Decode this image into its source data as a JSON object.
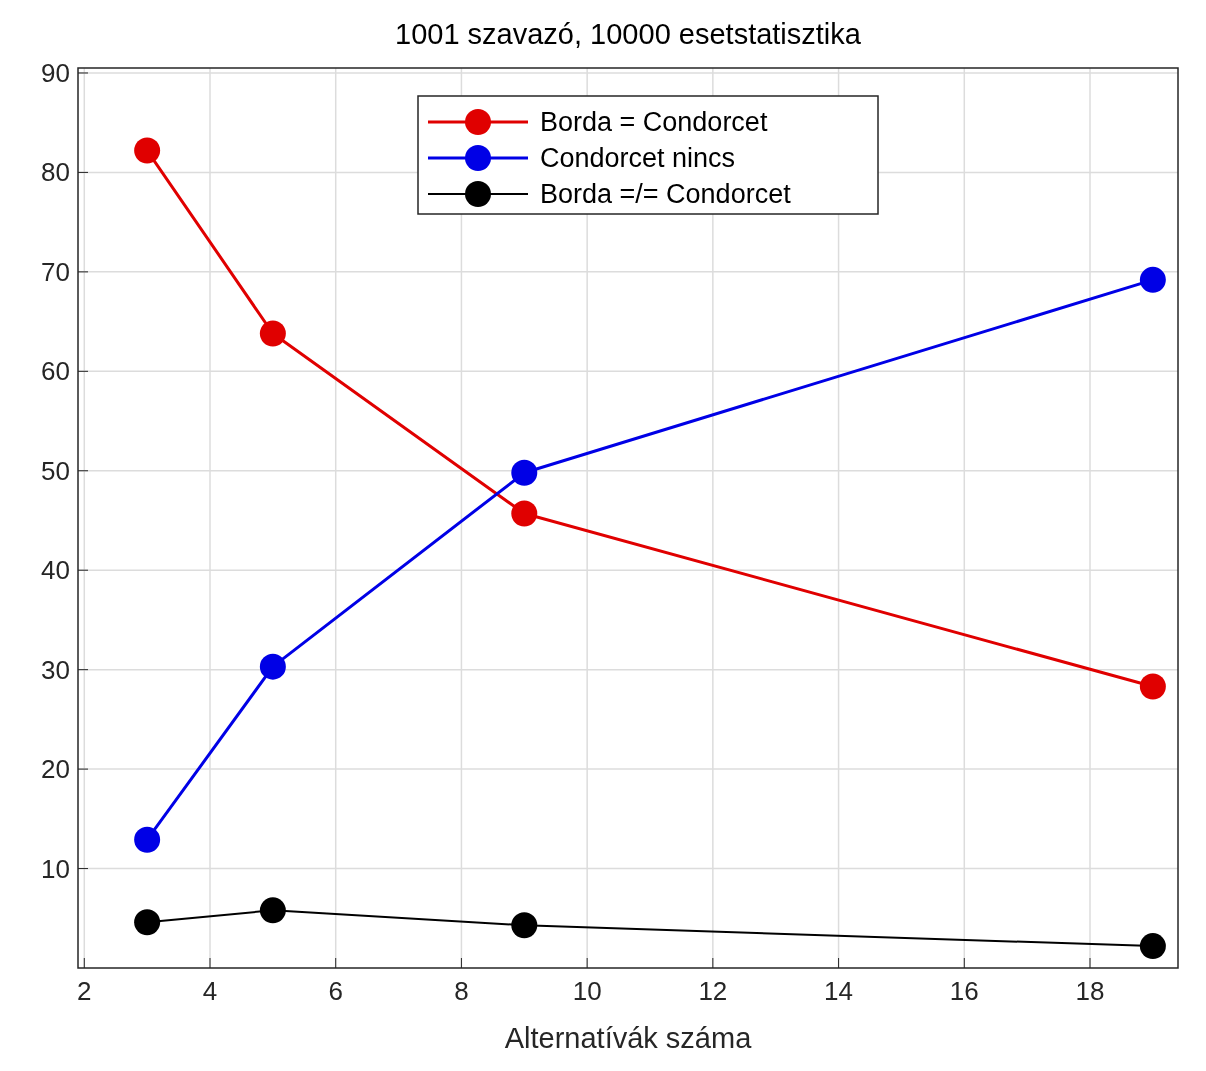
{
  "chart_data": {
    "type": "line",
    "title": "1001 szavazó, 10000 esetstatisztika",
    "xlabel": "Alternatívák száma",
    "x": [
      3,
      5,
      9,
      19
    ],
    "series": [
      {
        "name": "Borda = Condorcet",
        "color": "#e00000",
        "values": [
          82.2,
          63.8,
          45.7,
          28.3
        ]
      },
      {
        "name": "Condorcet nincs",
        "color": "#0000e6",
        "values": [
          12.9,
          30.3,
          49.8,
          69.2
        ]
      },
      {
        "name": "Borda =/= Condorcet",
        "color": "#000000",
        "values": [
          4.6,
          5.8,
          4.3,
          2.2
        ]
      }
    ],
    "xlim": [
      1.9,
      19.4
    ],
    "xticks": [
      2,
      4,
      6,
      8,
      10,
      12,
      14,
      16,
      18
    ],
    "ylim": [
      0,
      90.5
    ],
    "yticks": [
      10,
      20,
      30,
      40,
      50,
      60,
      70,
      80,
      90
    ],
    "grid": true,
    "legend": "top",
    "marker": "circle",
    "line_style": "solid"
  }
}
